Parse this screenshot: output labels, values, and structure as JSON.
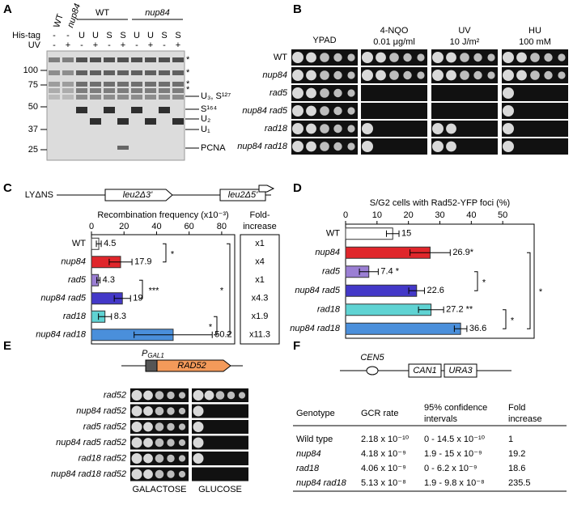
{
  "panels": {
    "A": {
      "label": "A",
      "lanes_top": [
        "WT",
        "nup84"
      ],
      "groups": [
        "WT",
        "nup84"
      ],
      "row_labels": [
        "His-tag",
        "UV"
      ],
      "his_tag": [
        "-",
        "-",
        "U",
        "U",
        "S",
        "S",
        "U",
        "U",
        "S",
        "S"
      ],
      "uv": [
        "-",
        "+",
        "-",
        "+",
        "-",
        "+",
        "-",
        "+",
        "-",
        "+"
      ],
      "markers": [
        100,
        75,
        50,
        37,
        25
      ],
      "bands": [
        "*",
        "*",
        "*",
        "*",
        "U₃, S¹²⁷",
        "S¹⁶⁴",
        "U₂",
        "U₁",
        "PCNA"
      ]
    },
    "B": {
      "label": "B",
      "columns": [
        [
          "YPAD"
        ],
        [
          "4-NQO",
          "0.01 μg/ml"
        ],
        [
          "UV",
          "10 J/m²"
        ],
        [
          "HU",
          "100 mM"
        ]
      ],
      "genotypes": [
        "WT",
        "nup84",
        "rad5",
        "nup84  rad5",
        "rad18",
        "nup84  rad18"
      ]
    },
    "E": {
      "label": "E",
      "promoter": "P",
      "promoter_sub": "GAL1",
      "gene": "RAD52",
      "genotypes": [
        "rad52",
        "nup84  rad52",
        "rad5  rad52",
        "nup84  rad5  rad52",
        "rad18  rad52",
        "nup84  rad18  rad52"
      ],
      "columns": [
        "GALACTOSE",
        "GLUCOSE"
      ]
    },
    "F": {
      "label": "F",
      "construct": [
        "CEN5",
        "CAN1",
        "URA3"
      ],
      "table": {
        "headers": [
          [
            "Genotype"
          ],
          [
            "GCR rate"
          ],
          [
            "95% confidence",
            "intervals"
          ],
          [
            "Fold",
            "increase"
          ]
        ],
        "rows": [
          [
            "Wild type",
            "2.18 x 10⁻¹⁰",
            "0 - 14.5 x 10⁻¹⁰",
            1
          ],
          [
            "nup84",
            "4.18 x 10⁻⁹",
            "1.9 - 15 x 10⁻⁹",
            19.2
          ],
          [
            "rad18",
            "4.06 x 10⁻⁹",
            "0 - 6.2 x 10⁻⁹",
            18.6
          ],
          [
            "nup84  rad18",
            "5.13 x 10⁻⁸",
            "1.9 - 9.8 x 10⁻⁸",
            235.5
          ]
        ]
      }
    }
  },
  "chart_data": [
    {
      "type": "hbar",
      "label": "C",
      "title": "Recombination frequency (x10⁻³)",
      "construct": [
        "LYΔNS",
        "leu2Δ3'",
        "leu2Δ5'"
      ],
      "categories": [
        "WT",
        "nup84",
        "rad5",
        "nup84  rad5",
        "rad18",
        "nup84  rad18"
      ],
      "values": [
        4.5,
        17.9,
        4.3,
        19,
        8.3,
        50.2
      ],
      "errors": [
        1.5,
        7,
        1,
        5,
        4,
        24
      ],
      "colors": [
        "#ffffff",
        "#e0262b",
        "#9b7fd4",
        "#4338c8",
        "#5fd3d3",
        "#4a8fdb"
      ],
      "xlim": [
        0,
        88
      ],
      "xticks": [
        0,
        20,
        40,
        60,
        80
      ],
      "fold_header": [
        "Fold-",
        "increase"
      ],
      "fold_values": [
        "x1",
        "x4",
        "x1",
        "x4.3",
        "x1.9",
        "x11.3"
      ],
      "significance": [
        "*",
        "***",
        "*",
        "*"
      ]
    },
    {
      "type": "hbar",
      "label": "D",
      "title": "S/G2 cells with Rad52-YFP foci (%)",
      "categories": [
        "WT",
        "nup84",
        "rad5",
        "nup84  rad5",
        "rad18",
        "nup84  rad18"
      ],
      "values": [
        15,
        26.9,
        7.4,
        22.6,
        27.2,
        36.6
      ],
      "value_labels": [
        "15",
        "26.9*",
        "7.4 *",
        "22.6",
        "27.2 **",
        "36.6"
      ],
      "errors": [
        2,
        6.4,
        3,
        2.5,
        4,
        2
      ],
      "colors": [
        "#ffffff",
        "#e0262b",
        "#9b7fd4",
        "#4338c8",
        "#5fd3d3",
        "#4a8fdb"
      ],
      "xlim": [
        0,
        60
      ],
      "xticks": [
        0,
        10,
        20,
        30,
        40,
        50
      ],
      "significance": [
        "*",
        "*",
        "*"
      ]
    }
  ]
}
